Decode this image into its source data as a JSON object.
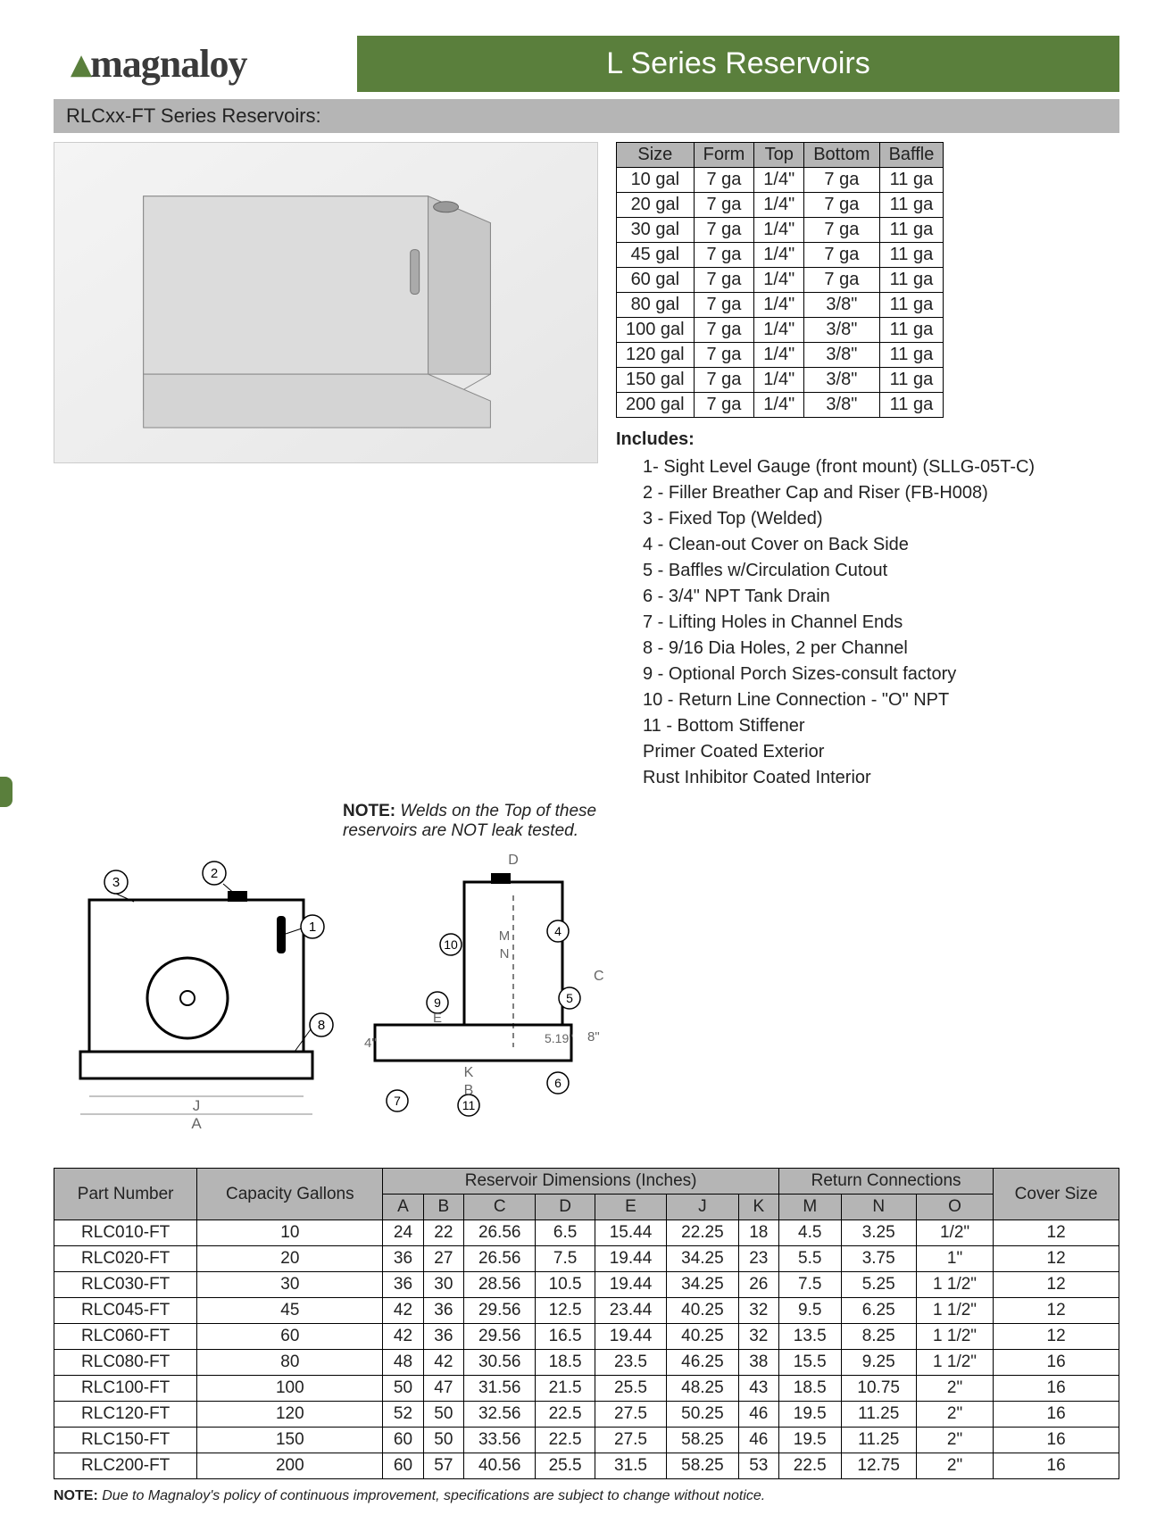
{
  "colors": {
    "brand_green": "#5a7f3c",
    "header_gray": "#b5b5b5",
    "border": "#000000",
    "text": "#222222",
    "bg": "#ffffff",
    "diagram_bg": "#f4f4f4"
  },
  "logo": {
    "text": "magnaloy"
  },
  "header": {
    "title": "L Series Reservoirs"
  },
  "subtitle": "RLCxx-FT Series Reservoirs:",
  "spec_table": {
    "columns": [
      "Size",
      "Form",
      "Top",
      "Bottom",
      "Baffle"
    ],
    "rows": [
      [
        "10 gal",
        "7 ga",
        "1/4\"",
        "7 ga",
        "11 ga"
      ],
      [
        "20 gal",
        "7 ga",
        "1/4\"",
        "7 ga",
        "11 ga"
      ],
      [
        "30 gal",
        "7 ga",
        "1/4\"",
        "7 ga",
        "11 ga"
      ],
      [
        "45 gal",
        "7 ga",
        "1/4\"",
        "7 ga",
        "11 ga"
      ],
      [
        "60 gal",
        "7 ga",
        "1/4\"",
        "7 ga",
        "11 ga"
      ],
      [
        "80 gal",
        "7 ga",
        "1/4\"",
        "3/8\"",
        "11 ga"
      ],
      [
        "100 gal",
        "7 ga",
        "1/4\"",
        "3/8\"",
        "11 ga"
      ],
      [
        "120 gal",
        "7 ga",
        "1/4\"",
        "3/8\"",
        "11 ga"
      ],
      [
        "150 gal",
        "7 ga",
        "1/4\"",
        "3/8\"",
        "11 ga"
      ],
      [
        "200 gal",
        "7 ga",
        "1/4\"",
        "3/8\"",
        "11 ga"
      ]
    ]
  },
  "includes": {
    "title": "Includes:",
    "items": [
      "1- Sight Level Gauge (front mount) (SLLG-05T-C)",
      "2 - Filler Breather Cap and Riser (FB-H008)",
      "3 - Fixed Top (Welded)",
      "4 - Clean-out Cover on Back Side",
      "5 - Baffles w/Circulation Cutout",
      "6 - 3/4\" NPT Tank Drain",
      "7 - Lifting Holes in Channel Ends",
      "8 - 9/16 Dia Holes, 2 per Channel",
      "9 - Optional Porch Sizes-consult factory",
      "10 - Return Line Connection - \"O\" NPT",
      "11 - Bottom Stiffener",
      "Primer Coated Exterior",
      "Rust Inhibitor Coated Interior"
    ]
  },
  "note1": {
    "label": "NOTE:",
    "text": "Welds on the Top of these reservoirs are NOT leak tested."
  },
  "diagram": {
    "left_callouts": [
      "1",
      "2",
      "3",
      "8"
    ],
    "left_dims": [
      "J",
      "A"
    ],
    "right_callouts": [
      "4",
      "5",
      "6",
      "7",
      "9",
      "10",
      "11"
    ],
    "right_dims": [
      "B",
      "C",
      "D",
      "E",
      "K",
      "M",
      "N"
    ],
    "fixed_dims": [
      "4\"",
      "5.19\"",
      "8\""
    ]
  },
  "dim_table": {
    "header1": [
      "Part Number",
      "Capacity Gallons",
      "Reservoir Dimensions (Inches)",
      "Return Connections",
      "Cover Size"
    ],
    "header2": [
      "A",
      "B",
      "C",
      "D",
      "E",
      "J",
      "K",
      "M",
      "N",
      "O"
    ],
    "rows": [
      [
        "RLC010-FT",
        "10",
        "24",
        "22",
        "26.56",
        "6.5",
        "15.44",
        "22.25",
        "18",
        "4.5",
        "3.25",
        "1/2\"",
        "12"
      ],
      [
        "RLC020-FT",
        "20",
        "36",
        "27",
        "26.56",
        "7.5",
        "19.44",
        "34.25",
        "23",
        "5.5",
        "3.75",
        "1\"",
        "12"
      ],
      [
        "RLC030-FT",
        "30",
        "36",
        "30",
        "28.56",
        "10.5",
        "19.44",
        "34.25",
        "26",
        "7.5",
        "5.25",
        "1 1/2\"",
        "12"
      ],
      [
        "RLC045-FT",
        "45",
        "42",
        "36",
        "29.56",
        "12.5",
        "23.44",
        "40.25",
        "32",
        "9.5",
        "6.25",
        "1 1/2\"",
        "12"
      ],
      [
        "RLC060-FT",
        "60",
        "42",
        "36",
        "29.56",
        "16.5",
        "19.44",
        "40.25",
        "32",
        "13.5",
        "8.25",
        "1 1/2\"",
        "12"
      ],
      [
        "RLC080-FT",
        "80",
        "48",
        "42",
        "30.56",
        "18.5",
        "23.5",
        "46.25",
        "38",
        "15.5",
        "9.25",
        "1 1/2\"",
        "16"
      ],
      [
        "RLC100-FT",
        "100",
        "50",
        "47",
        "31.56",
        "21.5",
        "25.5",
        "48.25",
        "43",
        "18.5",
        "10.75",
        "2\"",
        "16"
      ],
      [
        "RLC120-FT",
        "120",
        "52",
        "50",
        "32.56",
        "22.5",
        "27.5",
        "50.25",
        "46",
        "19.5",
        "11.25",
        "2\"",
        "16"
      ],
      [
        "RLC150-FT",
        "150",
        "60",
        "50",
        "33.56",
        "22.5",
        "27.5",
        "58.25",
        "46",
        "19.5",
        "11.25",
        "2\"",
        "16"
      ],
      [
        "RLC200-FT",
        "200",
        "60",
        "57",
        "40.56",
        "25.5",
        "31.5",
        "58.25",
        "53",
        "22.5",
        "12.75",
        "2\"",
        "16"
      ]
    ]
  },
  "footnote": {
    "label": "NOTE:",
    "text": "Due to Magnaloy's policy of continuous improvement, specifications are subject to change without notice."
  }
}
